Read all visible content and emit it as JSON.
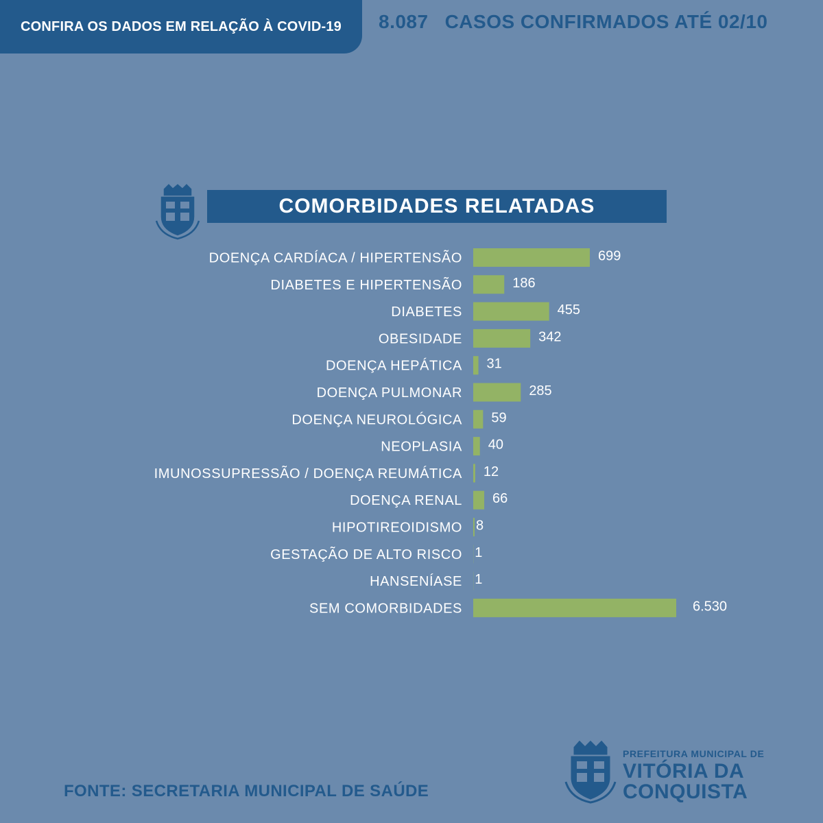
{
  "header": {
    "tab_label": "CONFIRA OS DADOS EM RELAÇÃO À COVID-19",
    "confirmed_count": "8.087",
    "confirmed_label": "CASOS CONFIRMADOS ATÉ 02/10"
  },
  "chart_data": {
    "type": "bar",
    "orientation": "horizontal",
    "title": "COMORBIDADES RELATADAS",
    "categories": [
      "DOENÇA CARDÍACA / HIPERTENSÃO",
      "DIABETES E HIPERTENSÃO",
      "DIABETES",
      "OBESIDADE",
      "DOENÇA HEPÁTICA",
      "DOENÇA PULMONAR",
      "DOENÇA NEUROLÓGICA",
      "NEOPLASIA",
      "IMUNOSSUPRESSÃO / DOENÇA REUMÁTICA",
      "DOENÇA RENAL",
      "HIPOTIREOIDISMO",
      "GESTAÇÃO DE ALTO RISCO",
      "HANSENÍASE",
      "SEM COMORBIDADES"
    ],
    "values": [
      699,
      186,
      455,
      342,
      31,
      285,
      59,
      40,
      12,
      66,
      8,
      1,
      1,
      6530
    ],
    "value_labels": [
      "699",
      "186",
      "455",
      "342",
      "31",
      "285",
      "59",
      "40",
      "12",
      "66",
      "8",
      "1",
      "1",
      "6.530"
    ],
    "bar_color": "#93b365",
    "grid": false,
    "legend": "none"
  },
  "footer": {
    "source": "FONTE: SECRETARIA MUNICIPAL DE SAÚDE",
    "logo_line1": "PREFEITURA MUNICIPAL DE",
    "logo_line2": "VITÓRIA DA",
    "logo_line3": "CONQUISTA"
  },
  "colors": {
    "background": "#6b8aad",
    "brand_blue": "#235a8c",
    "bar_green": "#93b365"
  },
  "icons": {
    "crest": "municipal-crest-icon"
  }
}
